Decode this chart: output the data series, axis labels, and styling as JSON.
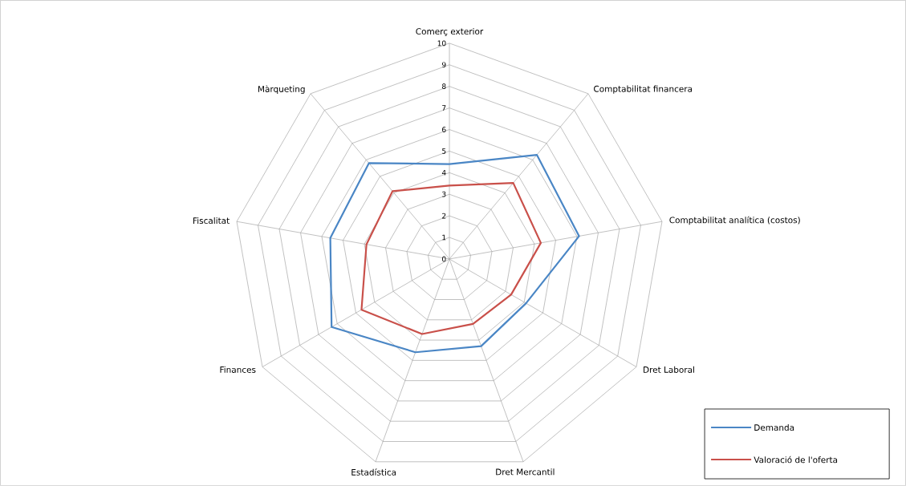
{
  "chart_data": {
    "type": "radar",
    "categories": [
      "Comerç exterior",
      "Comptabilitat financera",
      "Comptabilitat analítica (costos)",
      "Dret Laboral",
      "Dret Mercantil",
      "Estadística",
      "Finances",
      "Fiscalitat",
      "Màrqueting"
    ],
    "series": [
      {
        "name": "Demanda",
        "color": "#4a86c5",
        "values": [
          4.4,
          6.3,
          6.1,
          4.1,
          4.3,
          4.6,
          6.3,
          5.6,
          5.8
        ]
      },
      {
        "name": "Valoració de l'oferta",
        "color": "#c9504a",
        "values": [
          3.4,
          4.6,
          4.3,
          3.3,
          3.2,
          3.7,
          4.7,
          3.9,
          4.1
        ]
      }
    ],
    "ylim": [
      0,
      10
    ],
    "yticks": [
      0,
      1,
      2,
      3,
      4,
      5,
      6,
      7,
      8,
      9,
      10
    ],
    "grid": true,
    "legend": "bottom right",
    "marker": "none",
    "line_style": "solid"
  }
}
